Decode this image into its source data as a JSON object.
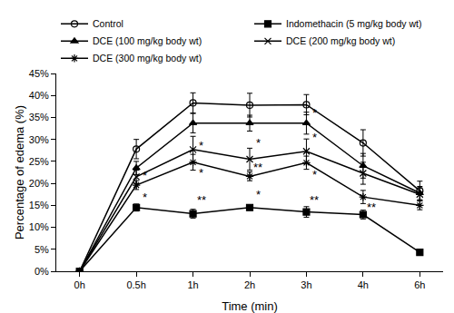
{
  "chart_data": {
    "type": "line",
    "x_label": "Time (min)",
    "y_label": "Percentage of edema (%)",
    "categories": [
      "0h",
      "0.5h",
      "1h",
      "2h",
      "3h",
      "4h",
      "6h"
    ],
    "ylim": [
      0,
      45
    ],
    "yticks": [
      {
        "value": 0,
        "label": "0%"
      },
      {
        "value": 5,
        "label": "5%"
      },
      {
        "value": 10,
        "label": "10%"
      },
      {
        "value": 15,
        "label": "15%"
      },
      {
        "value": 20,
        "label": "20%"
      },
      {
        "value": 25,
        "label": "25%"
      },
      {
        "value": 30,
        "label": "30%"
      },
      {
        "value": 35,
        "label": "35%"
      },
      {
        "value": 40,
        "label": "40%"
      },
      {
        "value": 45,
        "label": "45%"
      }
    ],
    "grid": false,
    "legend": "top",
    "series": [
      {
        "name": "Control",
        "color": "#000000",
        "marker": "circle-open",
        "line_style": "solid",
        "values": [
          0,
          27.8,
          38.3,
          37.8,
          37.9,
          29.2,
          18.3
        ],
        "errors": [
          null,
          2.2,
          2.3,
          2.7,
          2.3,
          3.0,
          2.2
        ]
      },
      {
        "name": "Indomethacin (5 mg/kg body wt)",
        "color": "#000000",
        "marker": "square",
        "line_style": "solid",
        "values": [
          0,
          14.5,
          13.1,
          14.5,
          13.5,
          12.9,
          4.3
        ],
        "errors": [
          null,
          0.8,
          1.0,
          0.6,
          1.2,
          1.0,
          0.5
        ]
      },
      {
        "name": "DCE (100 mg/kg body wt)",
        "color": "#000000",
        "marker": "triangle-up",
        "line_style": "solid",
        "values": [
          0,
          23.5,
          33.7,
          33.7,
          33.7,
          24.0,
          17.8
        ],
        "errors": [
          null,
          1.5,
          2.2,
          1.8,
          2.5,
          2.8,
          1.5
        ]
      },
      {
        "name": "DCE (200 mg/kg body wt)",
        "color": "#000000",
        "marker": "x-thin-open",
        "line_style": "solid",
        "values": [
          0,
          21.5,
          27.7,
          25.5,
          27.3,
          22.3,
          17.5
        ],
        "errors": [
          null,
          1.5,
          3.0,
          2.5,
          2.8,
          2.5,
          1.5
        ]
      },
      {
        "name": "DCE (300 mg/kg body wt)",
        "color": "#000000",
        "marker": "asterisk-open",
        "line_style": "solid",
        "values": [
          0,
          19.6,
          24.8,
          21.6,
          24.7,
          16.9,
          15.0
        ],
        "errors": [
          null,
          1.0,
          1.8,
          1.0,
          1.5,
          1.5,
          1.0
        ]
      }
    ],
    "annotations": [
      {
        "category": "0.5h",
        "y": 21.8,
        "text": "*"
      },
      {
        "category": "0.5h",
        "y": 16.8,
        "text": "*"
      },
      {
        "category": "1h",
        "y": 28.5,
        "text": "*"
      },
      {
        "category": "1h",
        "y": 22.5,
        "text": "*"
      },
      {
        "category": "1h",
        "y": 16.2,
        "text": "**"
      },
      {
        "category": "2h",
        "y": 29.3,
        "text": "*"
      },
      {
        "category": "2h",
        "y": 23.7,
        "text": "**"
      },
      {
        "category": "2h",
        "y": 17.5,
        "text": "*"
      },
      {
        "category": "3h",
        "y": 36.0,
        "text": "*"
      },
      {
        "category": "3h",
        "y": 30.5,
        "text": "*"
      },
      {
        "category": "3h",
        "y": 22.0,
        "text": "*"
      },
      {
        "category": "3h",
        "y": 16.3,
        "text": "**"
      },
      {
        "category": "4h",
        "y": 14.6,
        "text": "**"
      }
    ]
  }
}
